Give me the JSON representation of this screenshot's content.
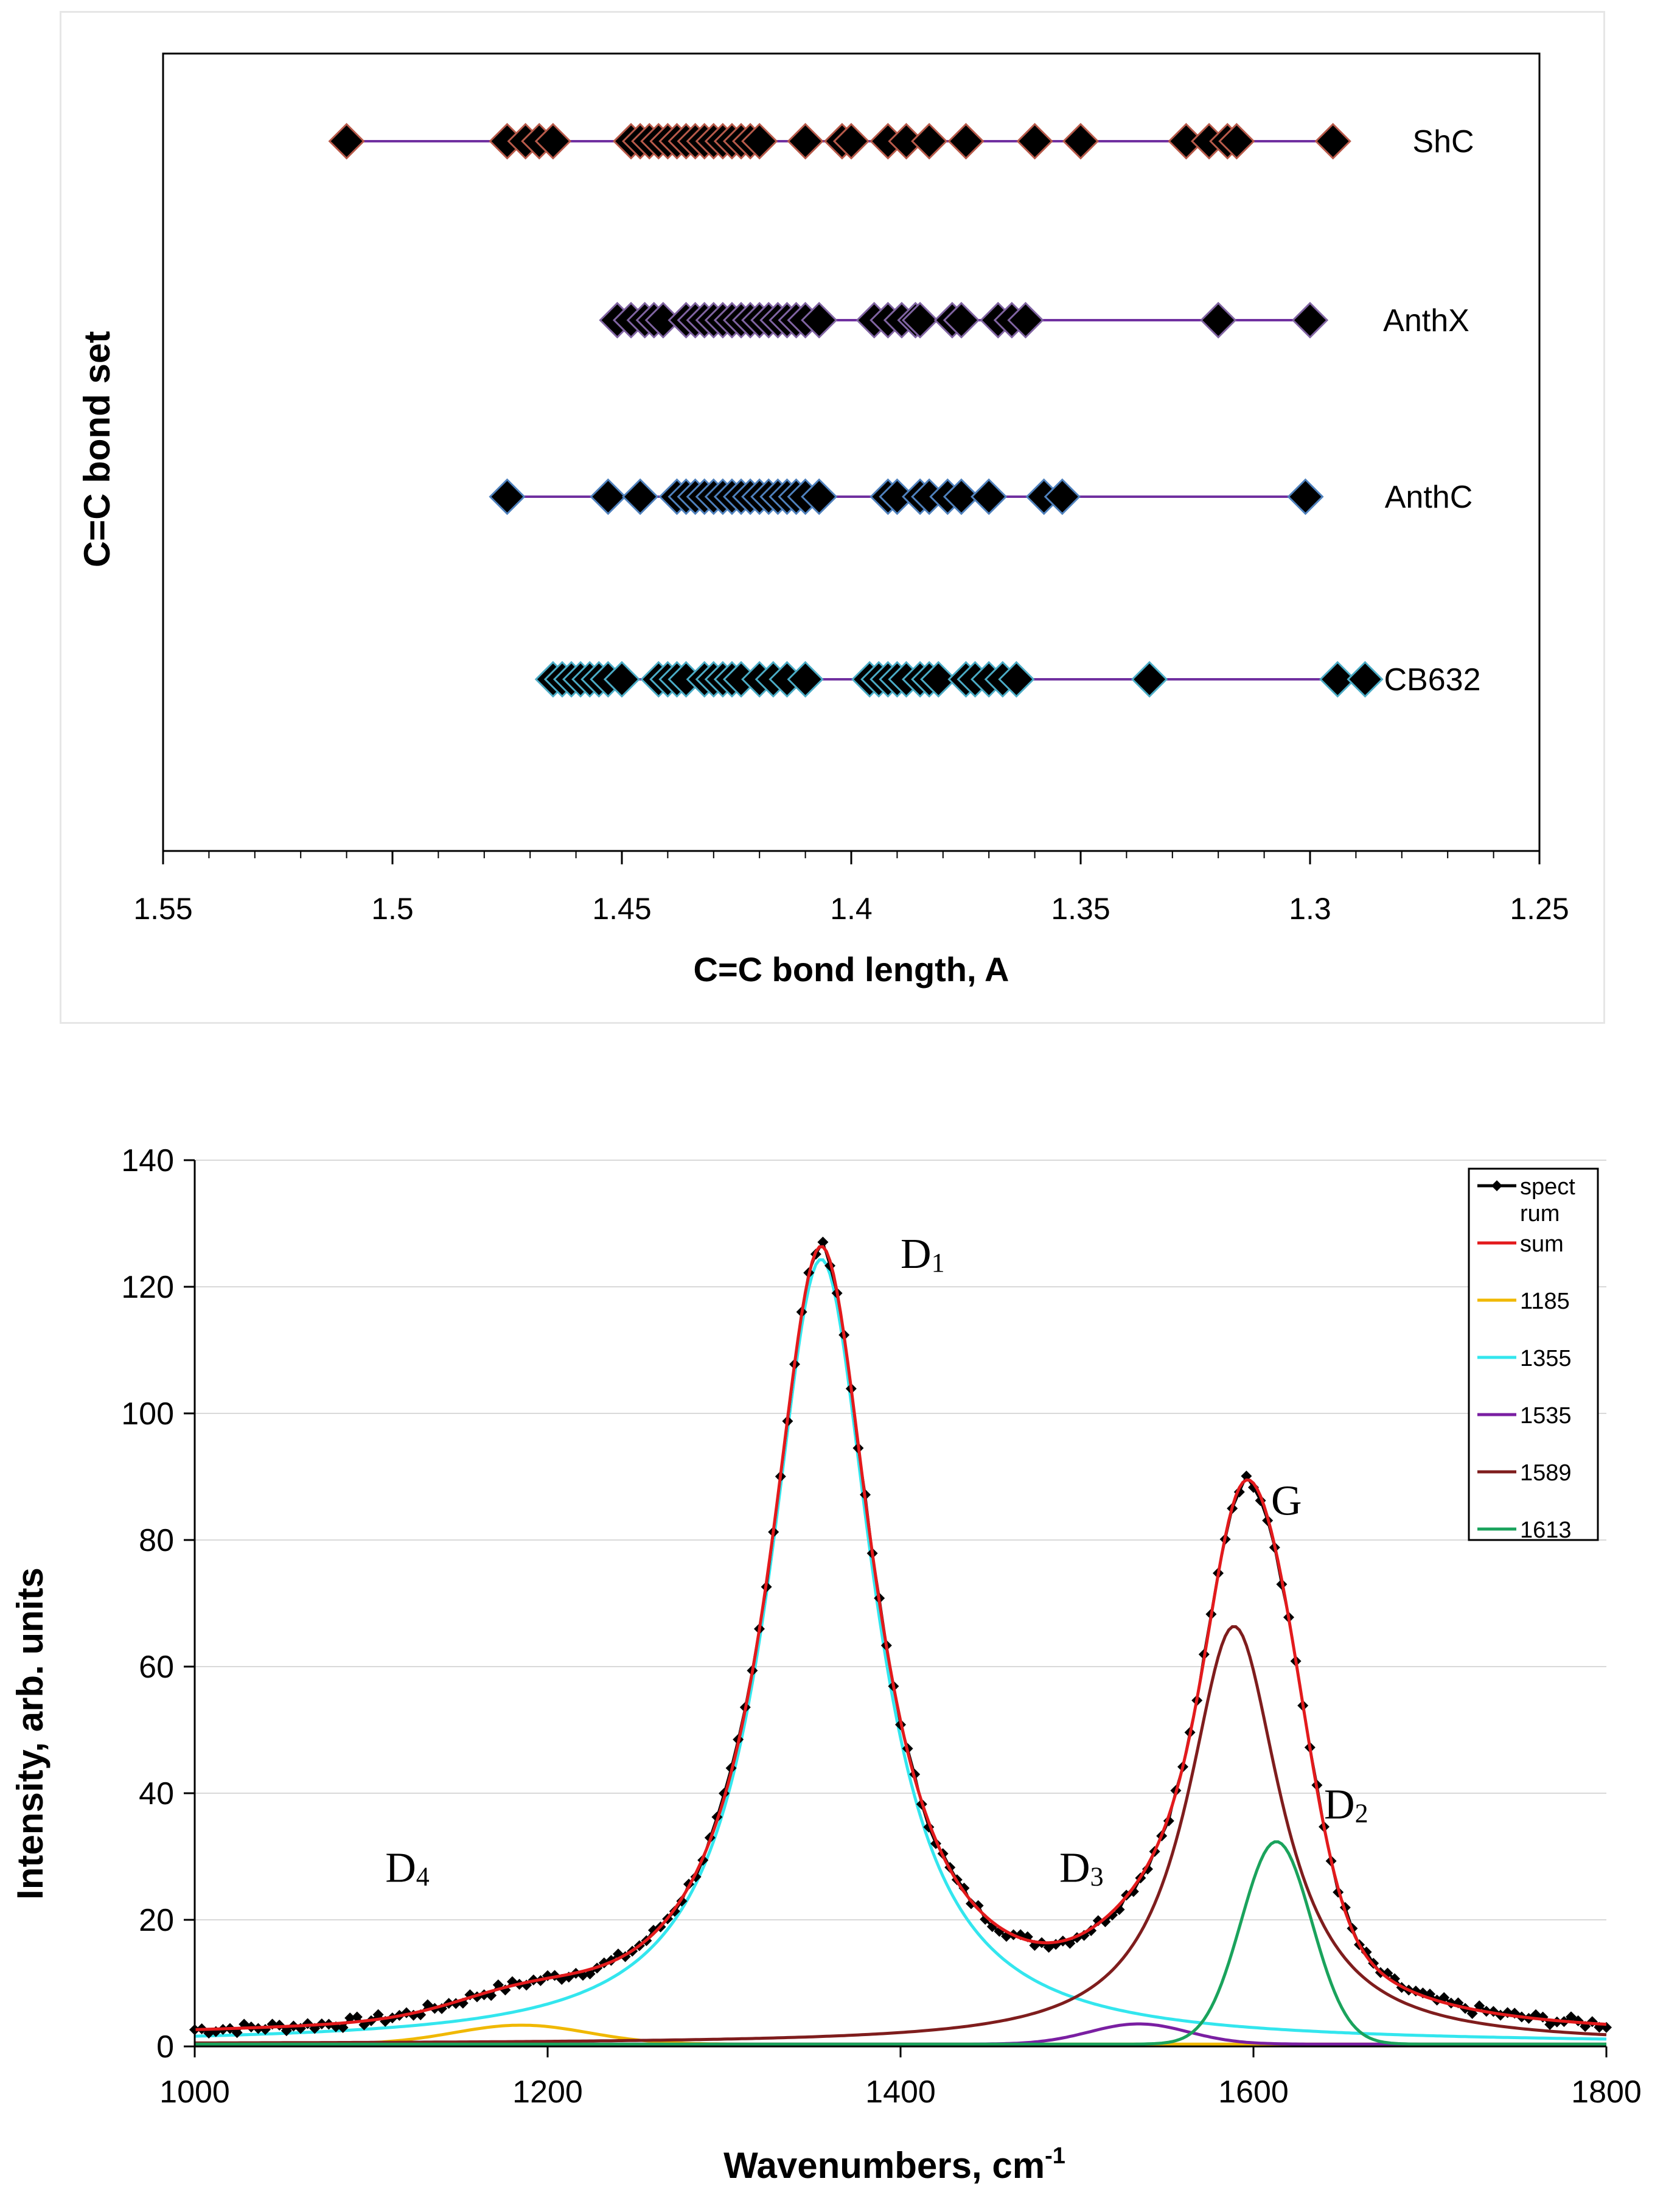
{
  "chart_data": [
    {
      "type": "scatter",
      "title": "",
      "xlabel": "C=C bond length, A",
      "ylabel": "C=C bond set",
      "xlim": [
        1.55,
        1.25
      ],
      "x_reversed": true,
      "xticks": [
        "1.55",
        "1.5",
        "1.45",
        "1.4",
        "1.35",
        "1.3",
        "1.25"
      ],
      "series": [
        {
          "name": "ShC",
          "color": "#b85a4a",
          "line_color": "#7030a0",
          "values": [
            1.51,
            1.475,
            1.471,
            1.468,
            1.465,
            1.448,
            1.446,
            1.444,
            1.442,
            1.44,
            1.438,
            1.436,
            1.434,
            1.432,
            1.43,
            1.428,
            1.426,
            1.424,
            1.422,
            1.42,
            1.41,
            1.402,
            1.4,
            1.392,
            1.388,
            1.383,
            1.375,
            1.36,
            1.35,
            1.327,
            1.322,
            1.318,
            1.316,
            1.295
          ]
        },
        {
          "name": "AnthX",
          "color": "#8064a2",
          "line_color": "#7030a0",
          "values": [
            1.451,
            1.448,
            1.445,
            1.443,
            1.441,
            1.436,
            1.434,
            1.432,
            1.43,
            1.428,
            1.426,
            1.424,
            1.422,
            1.42,
            1.418,
            1.416,
            1.414,
            1.412,
            1.41,
            1.407,
            1.395,
            1.392,
            1.389,
            1.386,
            1.385,
            1.378,
            1.376,
            1.368,
            1.365,
            1.362,
            1.32,
            1.3
          ]
        },
        {
          "name": "AnthC",
          "color": "#4f81bd",
          "line_color": "#7030a0",
          "values": [
            1.475,
            1.453,
            1.446,
            1.438,
            1.436,
            1.434,
            1.432,
            1.43,
            1.428,
            1.426,
            1.424,
            1.422,
            1.42,
            1.418,
            1.416,
            1.414,
            1.412,
            1.41,
            1.407,
            1.392,
            1.39,
            1.385,
            1.383,
            1.379,
            1.376,
            1.37,
            1.358,
            1.354,
            1.301
          ]
        },
        {
          "name": "CB632",
          "color": "#4bacc6",
          "line_color": "#7030a0",
          "values": [
            1.465,
            1.463,
            1.461,
            1.459,
            1.457,
            1.455,
            1.453,
            1.45,
            1.442,
            1.44,
            1.438,
            1.436,
            1.432,
            1.43,
            1.428,
            1.426,
            1.424,
            1.42,
            1.417,
            1.414,
            1.41,
            1.396,
            1.394,
            1.392,
            1.39,
            1.388,
            1.385,
            1.383,
            1.381,
            1.375,
            1.373,
            1.37,
            1.367,
            1.364,
            1.335,
            1.294,
            1.288
          ]
        }
      ]
    },
    {
      "type": "line",
      "title": "",
      "xlabel": "Wavenumbers, cm",
      "xlabel_sup": "-1",
      "ylabel": "Intensity, arb. units",
      "xlim": [
        1000,
        1800
      ],
      "ylim": [
        0,
        140
      ],
      "xticks": [
        1000,
        1200,
        1400,
        1600,
        1800
      ],
      "yticks": [
        0,
        20,
        40,
        60,
        80,
        100,
        120,
        140
      ],
      "baseline": 1.2,
      "components": [
        {
          "name": "1185",
          "color": "#f0b800",
          "center": 1185,
          "amplitude": 3.0,
          "width": 38,
          "shape": "gaussian"
        },
        {
          "name": "1355",
          "color": "#33e6ee",
          "center": 1355,
          "amplitude": 124,
          "width": 36,
          "shape": "lorentzian"
        },
        {
          "name": "1535",
          "color": "#7a1fa2",
          "center": 1535,
          "amplitude": 3.2,
          "width": 28,
          "shape": "gaussian"
        },
        {
          "name": "1589",
          "color": "#7f1d1d",
          "center": 1589,
          "amplitude": 66,
          "width": 32,
          "shape": "lorentzian"
        },
        {
          "name": "1613",
          "color": "#1aa35c",
          "center": 1613,
          "amplitude": 32,
          "width": 20,
          "shape": "gaussian"
        }
      ],
      "spectrum": {
        "name": "spectrum",
        "color": "#000000",
        "step": 4
      },
      "sum": {
        "name": "sum",
        "color": "#e31a1c"
      },
      "legend": [
        "spect rum",
        "sum",
        "1185",
        "1355",
        "1535",
        "1589",
        "1613"
      ],
      "annotations": [
        {
          "base": "D",
          "sub": "1",
          "x": 1400,
          "y": 123
        },
        {
          "base": "G",
          "sub": "",
          "x": 1610,
          "y": 84
        },
        {
          "base": "D",
          "sub": "2",
          "x": 1640,
          "y": 36
        },
        {
          "base": "D",
          "sub": "3",
          "x": 1490,
          "y": 26
        },
        {
          "base": "D",
          "sub": "4",
          "x": 1108,
          "y": 26
        }
      ]
    }
  ]
}
